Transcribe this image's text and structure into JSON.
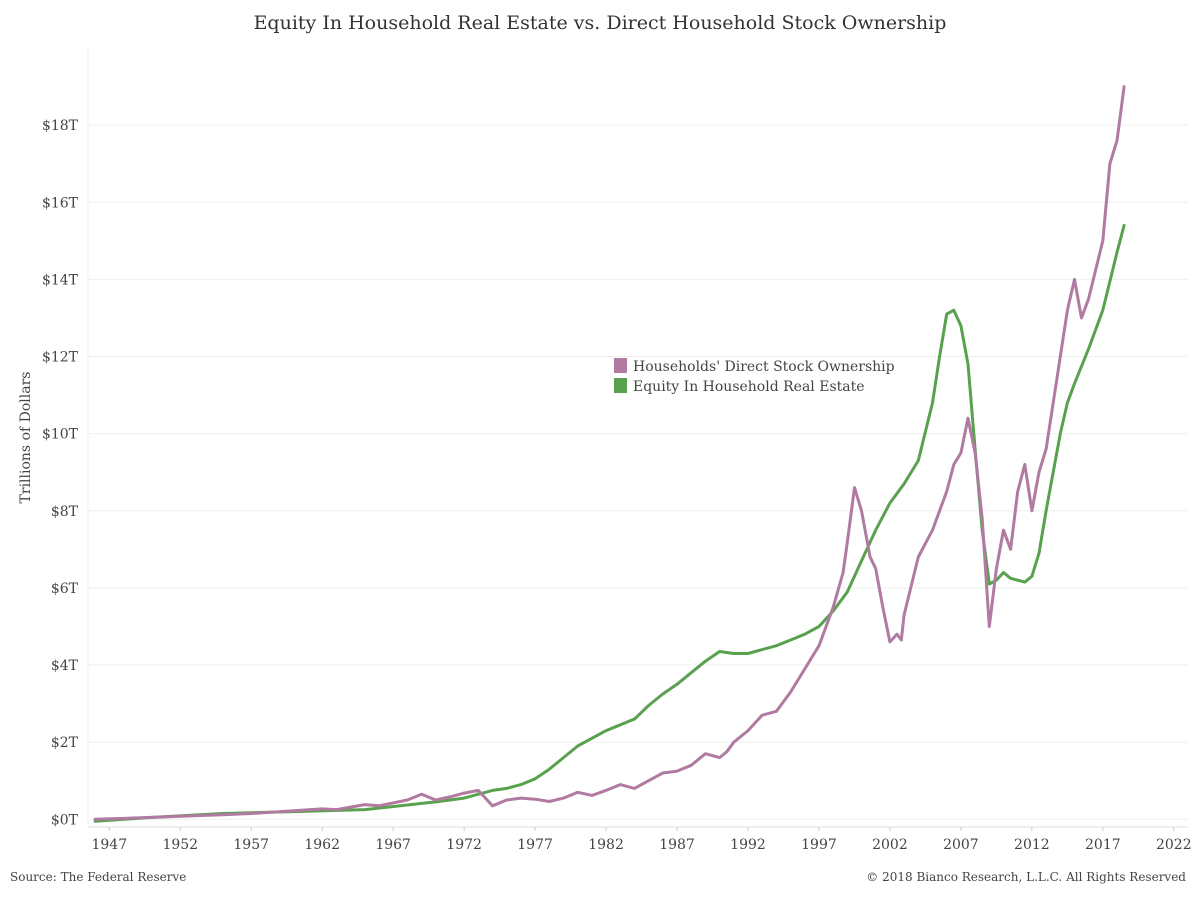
{
  "title": "Equity In Household Real Estate vs. Direct Household Stock Ownership",
  "footer": {
    "source": "Source: The Federal Reserve",
    "copyright": "© 2018 Bianco Research, L.L.C. All Rights Reserved"
  },
  "chart_data": {
    "type": "line",
    "title": "Equity In Household Real Estate vs. Direct Household Stock Ownership",
    "xlabel": "",
    "ylabel": "Trillions of Dollars",
    "xlim": [
      1945.5,
      2023
    ],
    "ylim": [
      -0.2,
      20
    ],
    "x_ticks": [
      1947,
      1952,
      1957,
      1962,
      1967,
      1972,
      1977,
      1982,
      1987,
      1992,
      1997,
      2002,
      2007,
      2012,
      2017,
      2022
    ],
    "y_ticks": [
      0,
      2,
      4,
      6,
      8,
      10,
      12,
      14,
      16,
      18
    ],
    "y_tick_labels": [
      "$0T",
      "$2T",
      "$4T",
      "$6T",
      "$8T",
      "$10T",
      "$12T",
      "$14T",
      "$16T",
      "$18T"
    ],
    "grid": "horizontal",
    "legend_position": "center",
    "series": [
      {
        "name": "Households' Direct Stock Ownership",
        "color": "#b07aa1",
        "x": [
          1946,
          1950,
          1953,
          1955,
          1957,
          1960,
          1962,
          1963,
          1965,
          1966,
          1968,
          1969,
          1970,
          1971,
          1972,
          1973,
          1974,
          1975,
          1976,
          1977,
          1978,
          1979,
          1980,
          1981,
          1982,
          1983,
          1984,
          1985,
          1986,
          1987,
          1988,
          1989,
          1990,
          1990.5,
          1991,
          1992,
          1993,
          1994,
          1995,
          1996,
          1997,
          1998,
          1998.7,
          1999,
          1999.5,
          2000,
          2000.6,
          2001,
          2001.5,
          2002,
          2002.5,
          2002.8,
          2003,
          2004,
          2005,
          2006,
          2006.5,
          2007,
          2007.5,
          2008,
          2008.5,
          2009,
          2009.5,
          2010,
          2010.5,
          2011,
          2011.5,
          2012,
          2012.5,
          2013,
          2013.5,
          2014,
          2014.5,
          2015,
          2015.5,
          2016,
          2017,
          2017.5,
          2018,
          2018.5
        ],
        "values": [
          0,
          0.05,
          0.09,
          0.12,
          0.15,
          0.22,
          0.27,
          0.25,
          0.38,
          0.35,
          0.5,
          0.65,
          0.5,
          0.58,
          0.68,
          0.75,
          0.35,
          0.5,
          0.55,
          0.52,
          0.46,
          0.55,
          0.7,
          0.62,
          0.75,
          0.9,
          0.8,
          1.0,
          1.2,
          1.25,
          1.4,
          1.7,
          1.6,
          1.75,
          2.0,
          2.3,
          2.7,
          2.8,
          3.3,
          3.9,
          4.5,
          5.5,
          6.4,
          7.2,
          8.6,
          8.0,
          6.8,
          6.5,
          5.5,
          4.6,
          4.8,
          4.65,
          5.3,
          6.8,
          7.5,
          8.5,
          9.2,
          9.5,
          10.4,
          9.5,
          7.8,
          5.0,
          6.5,
          7.5,
          7.0,
          8.5,
          9.2,
          8.0,
          9.0,
          9.6,
          10.8,
          12.0,
          13.2,
          14.0,
          13.0,
          13.5,
          15.0,
          17.0,
          17.6,
          19.0
        ]
      },
      {
        "name": "Equity In Household Real Estate",
        "color": "#59a14f",
        "x": [
          1946,
          1950,
          1955,
          1960,
          1965,
          1970,
          1972,
          1974,
          1975,
          1976,
          1977,
          1978,
          1979,
          1980,
          1981,
          1982,
          1983,
          1984,
          1985,
          1986,
          1987,
          1988,
          1989,
          1990,
          1991,
          1992,
          1993,
          1994,
          1995,
          1996,
          1997,
          1998,
          1999,
          2000,
          2001,
          2002,
          2003,
          2004,
          2005,
          2005.5,
          2006,
          2006.5,
          2007,
          2007.5,
          2008,
          2008.5,
          2009,
          2009.5,
          2010,
          2010.5,
          2011,
          2011.5,
          2012,
          2012.5,
          2013,
          2013.5,
          2014,
          2014.5,
          2015,
          2016,
          2017,
          2018,
          2018.5
        ],
        "values": [
          -0.05,
          0.05,
          0.15,
          0.2,
          0.25,
          0.45,
          0.55,
          0.75,
          0.8,
          0.9,
          1.05,
          1.3,
          1.6,
          1.9,
          2.1,
          2.3,
          2.45,
          2.6,
          2.95,
          3.25,
          3.5,
          3.8,
          4.1,
          4.35,
          4.3,
          4.3,
          4.4,
          4.5,
          4.65,
          4.8,
          5.0,
          5.4,
          5.9,
          6.7,
          7.5,
          8.2,
          8.7,
          9.3,
          10.8,
          12.0,
          13.1,
          13.2,
          12.8,
          11.8,
          9.6,
          7.5,
          6.1,
          6.2,
          6.4,
          6.25,
          6.2,
          6.15,
          6.3,
          6.9,
          8.0,
          9.0,
          10.0,
          10.8,
          11.3,
          12.2,
          13.2,
          14.7,
          15.4
        ]
      }
    ]
  }
}
